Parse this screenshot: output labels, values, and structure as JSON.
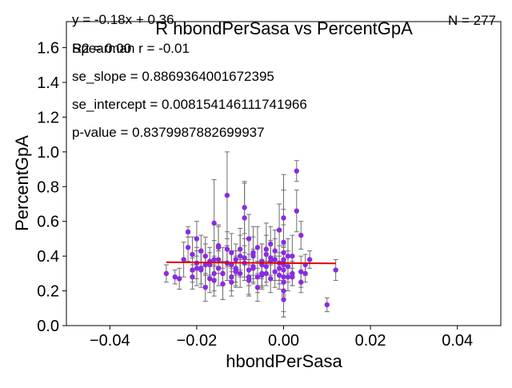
{
  "chart_data": {
    "type": "scatter",
    "title": "R hbondPerSasa vs PercentGpA",
    "xlabel": "hbondPerSasa",
    "ylabel": "PercentGpA",
    "xlim": [
      -0.05,
      0.05
    ],
    "ylim": [
      0.0,
      1.75
    ],
    "x_ticks": [
      -0.04,
      -0.02,
      0.0,
      0.02,
      0.04
    ],
    "x_tick_labels": [
      "−0.04",
      "−0.02",
      "0.00",
      "0.02",
      "0.04"
    ],
    "y_ticks": [
      0.0,
      0.2,
      0.4,
      0.6,
      0.8,
      1.0,
      1.2,
      1.4,
      1.6
    ],
    "y_tick_labels": [
      "0.0",
      "0.2",
      "0.4",
      "0.6",
      "0.8",
      "1.0",
      "1.2",
      "1.4",
      "1.6"
    ],
    "grid": false,
    "colors": {
      "points": "#8a2be2",
      "errorbars": "#6e6e6e",
      "fit_line": "#e00000"
    },
    "annotations": {
      "equation": "y = -0.18x + 0.36",
      "r2": "R2 = 0.00",
      "spearman": "Spearman r = -0.01",
      "se_slope": "se_slope = 0.8869364001672395",
      "se_intercept": "se_intercept = 0.008154146111741966",
      "p_value": "p-value = 0.8379987882699937",
      "n": "N = 277"
    },
    "fit_line": {
      "x": [
        -0.027,
        0.012
      ],
      "y": [
        0.3649,
        0.3578
      ]
    },
    "series": [
      {
        "x": [
          -0.027,
          -0.025,
          -0.022,
          -0.021,
          -0.02,
          -0.019,
          -0.018,
          -0.017,
          -0.016,
          -0.015,
          -0.014,
          -0.013,
          -0.013,
          -0.012,
          -0.011,
          -0.01,
          -0.009,
          -0.009,
          -0.008,
          -0.007,
          -0.006,
          -0.005,
          -0.004,
          -0.003,
          -0.002,
          -0.001,
          0.0,
          0.0,
          0.0,
          0.001,
          0.002,
          0.003,
          0.003,
          0.004,
          0.005,
          0.006,
          0.01,
          0.012,
          -0.024,
          -0.023,
          -0.022,
          -0.021,
          -0.02,
          -0.019,
          -0.018,
          -0.018,
          -0.017,
          -0.016,
          -0.016,
          -0.015,
          -0.015,
          -0.014,
          -0.014,
          -0.013,
          -0.012,
          -0.012,
          -0.011,
          -0.011,
          -0.01,
          -0.01,
          -0.009,
          -0.008,
          -0.008,
          -0.007,
          -0.007,
          -0.006,
          -0.006,
          -0.005,
          -0.005,
          -0.004,
          -0.004,
          -0.003,
          -0.003,
          -0.002,
          -0.002,
          -0.001,
          -0.001,
          0.0,
          0.0,
          0.0,
          0.0,
          0.0,
          0.001,
          0.001,
          0.002,
          0.004,
          0.005,
          -0.021,
          -0.019,
          -0.017,
          -0.015,
          -0.013,
          -0.011,
          -0.009,
          -0.007,
          -0.005,
          -0.003,
          -0.001,
          0.0,
          0.0,
          0.002,
          0.004,
          -0.02,
          -0.016,
          -0.012,
          -0.008,
          -0.004,
          0.0
        ],
        "y": [
          0.3,
          0.28,
          0.54,
          0.32,
          0.5,
          0.43,
          0.35,
          0.37,
          0.59,
          0.33,
          0.3,
          0.75,
          0.44,
          0.25,
          0.33,
          0.4,
          0.62,
          0.68,
          0.28,
          0.42,
          0.22,
          0.35,
          0.44,
          0.47,
          0.38,
          0.55,
          0.62,
          0.48,
          0.25,
          0.4,
          0.28,
          0.66,
          0.89,
          0.52,
          0.35,
          0.38,
          0.12,
          0.32,
          0.27,
          0.38,
          0.45,
          0.28,
          0.36,
          0.32,
          0.22,
          0.4,
          0.35,
          0.26,
          0.3,
          0.38,
          0.46,
          0.3,
          0.24,
          0.36,
          0.42,
          0.28,
          0.38,
          0.32,
          0.44,
          0.3,
          0.36,
          0.5,
          0.26,
          0.4,
          0.33,
          0.45,
          0.28,
          0.37,
          0.3,
          0.41,
          0.34,
          0.39,
          0.27,
          0.43,
          0.31,
          0.36,
          0.29,
          0.38,
          0.32,
          0.42,
          0.2,
          0.15,
          0.34,
          0.28,
          0.3,
          0.25,
          0.3,
          0.41,
          0.33,
          0.27,
          0.45,
          0.36,
          0.31,
          0.39,
          0.34,
          0.29,
          0.37,
          0.33,
          0.28,
          0.35,
          0.4,
          0.31,
          0.33,
          0.38,
          0.35,
          0.32,
          0.3,
          0.36
        ],
        "err": [
          0.05,
          0.04,
          0.03,
          0.07,
          0.1,
          0.09,
          0.12,
          0.08,
          0.25,
          0.1,
          0.15,
          0.25,
          0.1,
          0.08,
          0.1,
          0.12,
          0.2,
          0.15,
          0.1,
          0.15,
          0.08,
          0.12,
          0.15,
          0.1,
          0.12,
          0.15,
          0.25,
          0.3,
          0.2,
          0.1,
          0.05,
          0.12,
          0.06,
          0.08,
          0.06,
          0.05,
          0.04,
          0.06,
          0.06,
          0.1,
          0.08,
          0.07,
          0.09,
          0.1,
          0.08,
          0.11,
          0.07,
          0.09,
          0.1,
          0.08,
          0.12,
          0.07,
          0.09,
          0.1,
          0.11,
          0.08,
          0.09,
          0.07,
          0.12,
          0.08,
          0.1,
          0.14,
          0.09,
          0.11,
          0.08,
          0.12,
          0.09,
          0.1,
          0.08,
          0.11,
          0.09,
          0.1,
          0.08,
          0.12,
          0.09,
          0.1,
          0.08,
          0.2,
          0.15,
          0.25,
          0.12,
          0.1,
          0.09,
          0.08,
          0.07,
          0.06,
          0.05,
          0.1,
          0.09,
          0.08,
          0.12,
          0.1,
          0.09,
          0.11,
          0.1,
          0.08,
          0.1,
          0.09,
          0.08,
          0.1,
          0.12,
          0.09,
          0.1,
          0.11,
          0.08,
          0.09,
          0.07,
          0.1
        ]
      }
    ]
  }
}
